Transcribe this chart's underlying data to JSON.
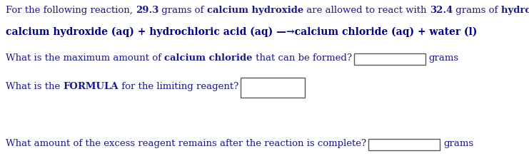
{
  "bg_color": "#ffffff",
  "line1_parts": [
    {
      "text": "For the following reaction, ",
      "bold": false
    },
    {
      "text": "29.3",
      "bold": true
    },
    {
      "text": " grams of ",
      "bold": false
    },
    {
      "text": "calcium hydroxide",
      "bold": true
    },
    {
      "text": " are allowed to react with ",
      "bold": false
    },
    {
      "text": "32.4",
      "bold": true
    },
    {
      "text": " grams of ",
      "bold": false
    },
    {
      "text": "hydrochloric acid",
      "bold": true
    },
    {
      "text": ".",
      "bold": false
    }
  ],
  "line2": "calcium hydroxide (aq) + hydrochloric acid (aq) —→calcium chloride (aq) + water (l)",
  "line3_pre": "What is the maximum amount of ",
  "line3_bold": "calcium chloride",
  "line3_post": " that can be formed?",
  "line3_suffix": "grams",
  "line4_pre": "What is the ",
  "line4_bold": "FORMULA",
  "line4_post": " for the limiting reagent?",
  "line5": "What amount of the excess reagent remains after the reaction is complete?",
  "line5_suffix": "grams",
  "font_size": 9.5,
  "text_color": "#1a1a8c",
  "box_color": "#5a5a5a",
  "box_facecolor": "#ffffff",
  "line2_color": "#000080"
}
